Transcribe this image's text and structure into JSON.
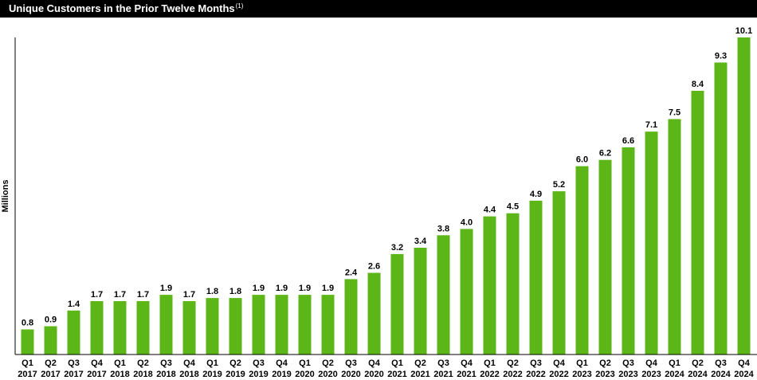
{
  "header": {
    "title": "Unique Customers in the Prior Twelve Months",
    "footnote_marker": "(1)"
  },
  "colors": {
    "bar": "#5cb618",
    "title_background": "#000000",
    "title_text": "#ffffff",
    "axis": "#000000"
  },
  "chart_data": {
    "type": "bar",
    "title": "Unique Customers in the Prior Twelve Months",
    "xlabel": "",
    "ylabel": "Millions",
    "ylim": [
      0,
      10.1
    ],
    "grid": false,
    "legend": "none",
    "categories": [
      [
        "Q1",
        "2017"
      ],
      [
        "Q2",
        "2017"
      ],
      [
        "Q3",
        "2017"
      ],
      [
        "Q4",
        "2017"
      ],
      [
        "Q1",
        "2018"
      ],
      [
        "Q2",
        "2018"
      ],
      [
        "Q3",
        "2018"
      ],
      [
        "Q4",
        "2018"
      ],
      [
        "Q1",
        "2019"
      ],
      [
        "Q2",
        "2019"
      ],
      [
        "Q3",
        "2019"
      ],
      [
        "Q4",
        "2019"
      ],
      [
        "Q1",
        "2020"
      ],
      [
        "Q2",
        "2020"
      ],
      [
        "Q3",
        "2020"
      ],
      [
        "Q4",
        "2020"
      ],
      [
        "Q1",
        "2021"
      ],
      [
        "Q2",
        "2021"
      ],
      [
        "Q3",
        "2021"
      ],
      [
        "Q4",
        "2021"
      ],
      [
        "Q1",
        "2022"
      ],
      [
        "Q2",
        "2022"
      ],
      [
        "Q3",
        "2022"
      ],
      [
        "Q4",
        "2022"
      ],
      [
        "Q1",
        "2023"
      ],
      [
        "Q2",
        "2023"
      ],
      [
        "Q3",
        "2023"
      ],
      [
        "Q4",
        "2023"
      ],
      [
        "Q1",
        "2024"
      ],
      [
        "Q2",
        "2024"
      ],
      [
        "Q3",
        "2024"
      ],
      [
        "Q4",
        "2024"
      ]
    ],
    "values": [
      0.8,
      0.9,
      1.4,
      1.7,
      1.7,
      1.7,
      1.9,
      1.7,
      1.8,
      1.8,
      1.9,
      1.9,
      1.9,
      1.9,
      2.4,
      2.6,
      3.2,
      3.4,
      3.8,
      4.0,
      4.4,
      4.5,
      4.9,
      5.2,
      6.0,
      6.2,
      6.6,
      7.1,
      7.5,
      8.4,
      9.3,
      10.1
    ],
    "value_labels": [
      "0.8",
      "0.9",
      "1.4",
      "1.7",
      "1.7",
      "1.7",
      "1.9",
      "1.7",
      "1.8",
      "1.8",
      "1.9",
      "1.9",
      "1.9",
      "1.9",
      "2.4",
      "2.6",
      "3.2",
      "3.4",
      "3.8",
      "4.0",
      "4.4",
      "4.5",
      "4.9",
      "5.2",
      "6.0",
      "6.2",
      "6.6",
      "7.1",
      "7.5",
      "8.4",
      "9.3",
      "10.1"
    ]
  }
}
